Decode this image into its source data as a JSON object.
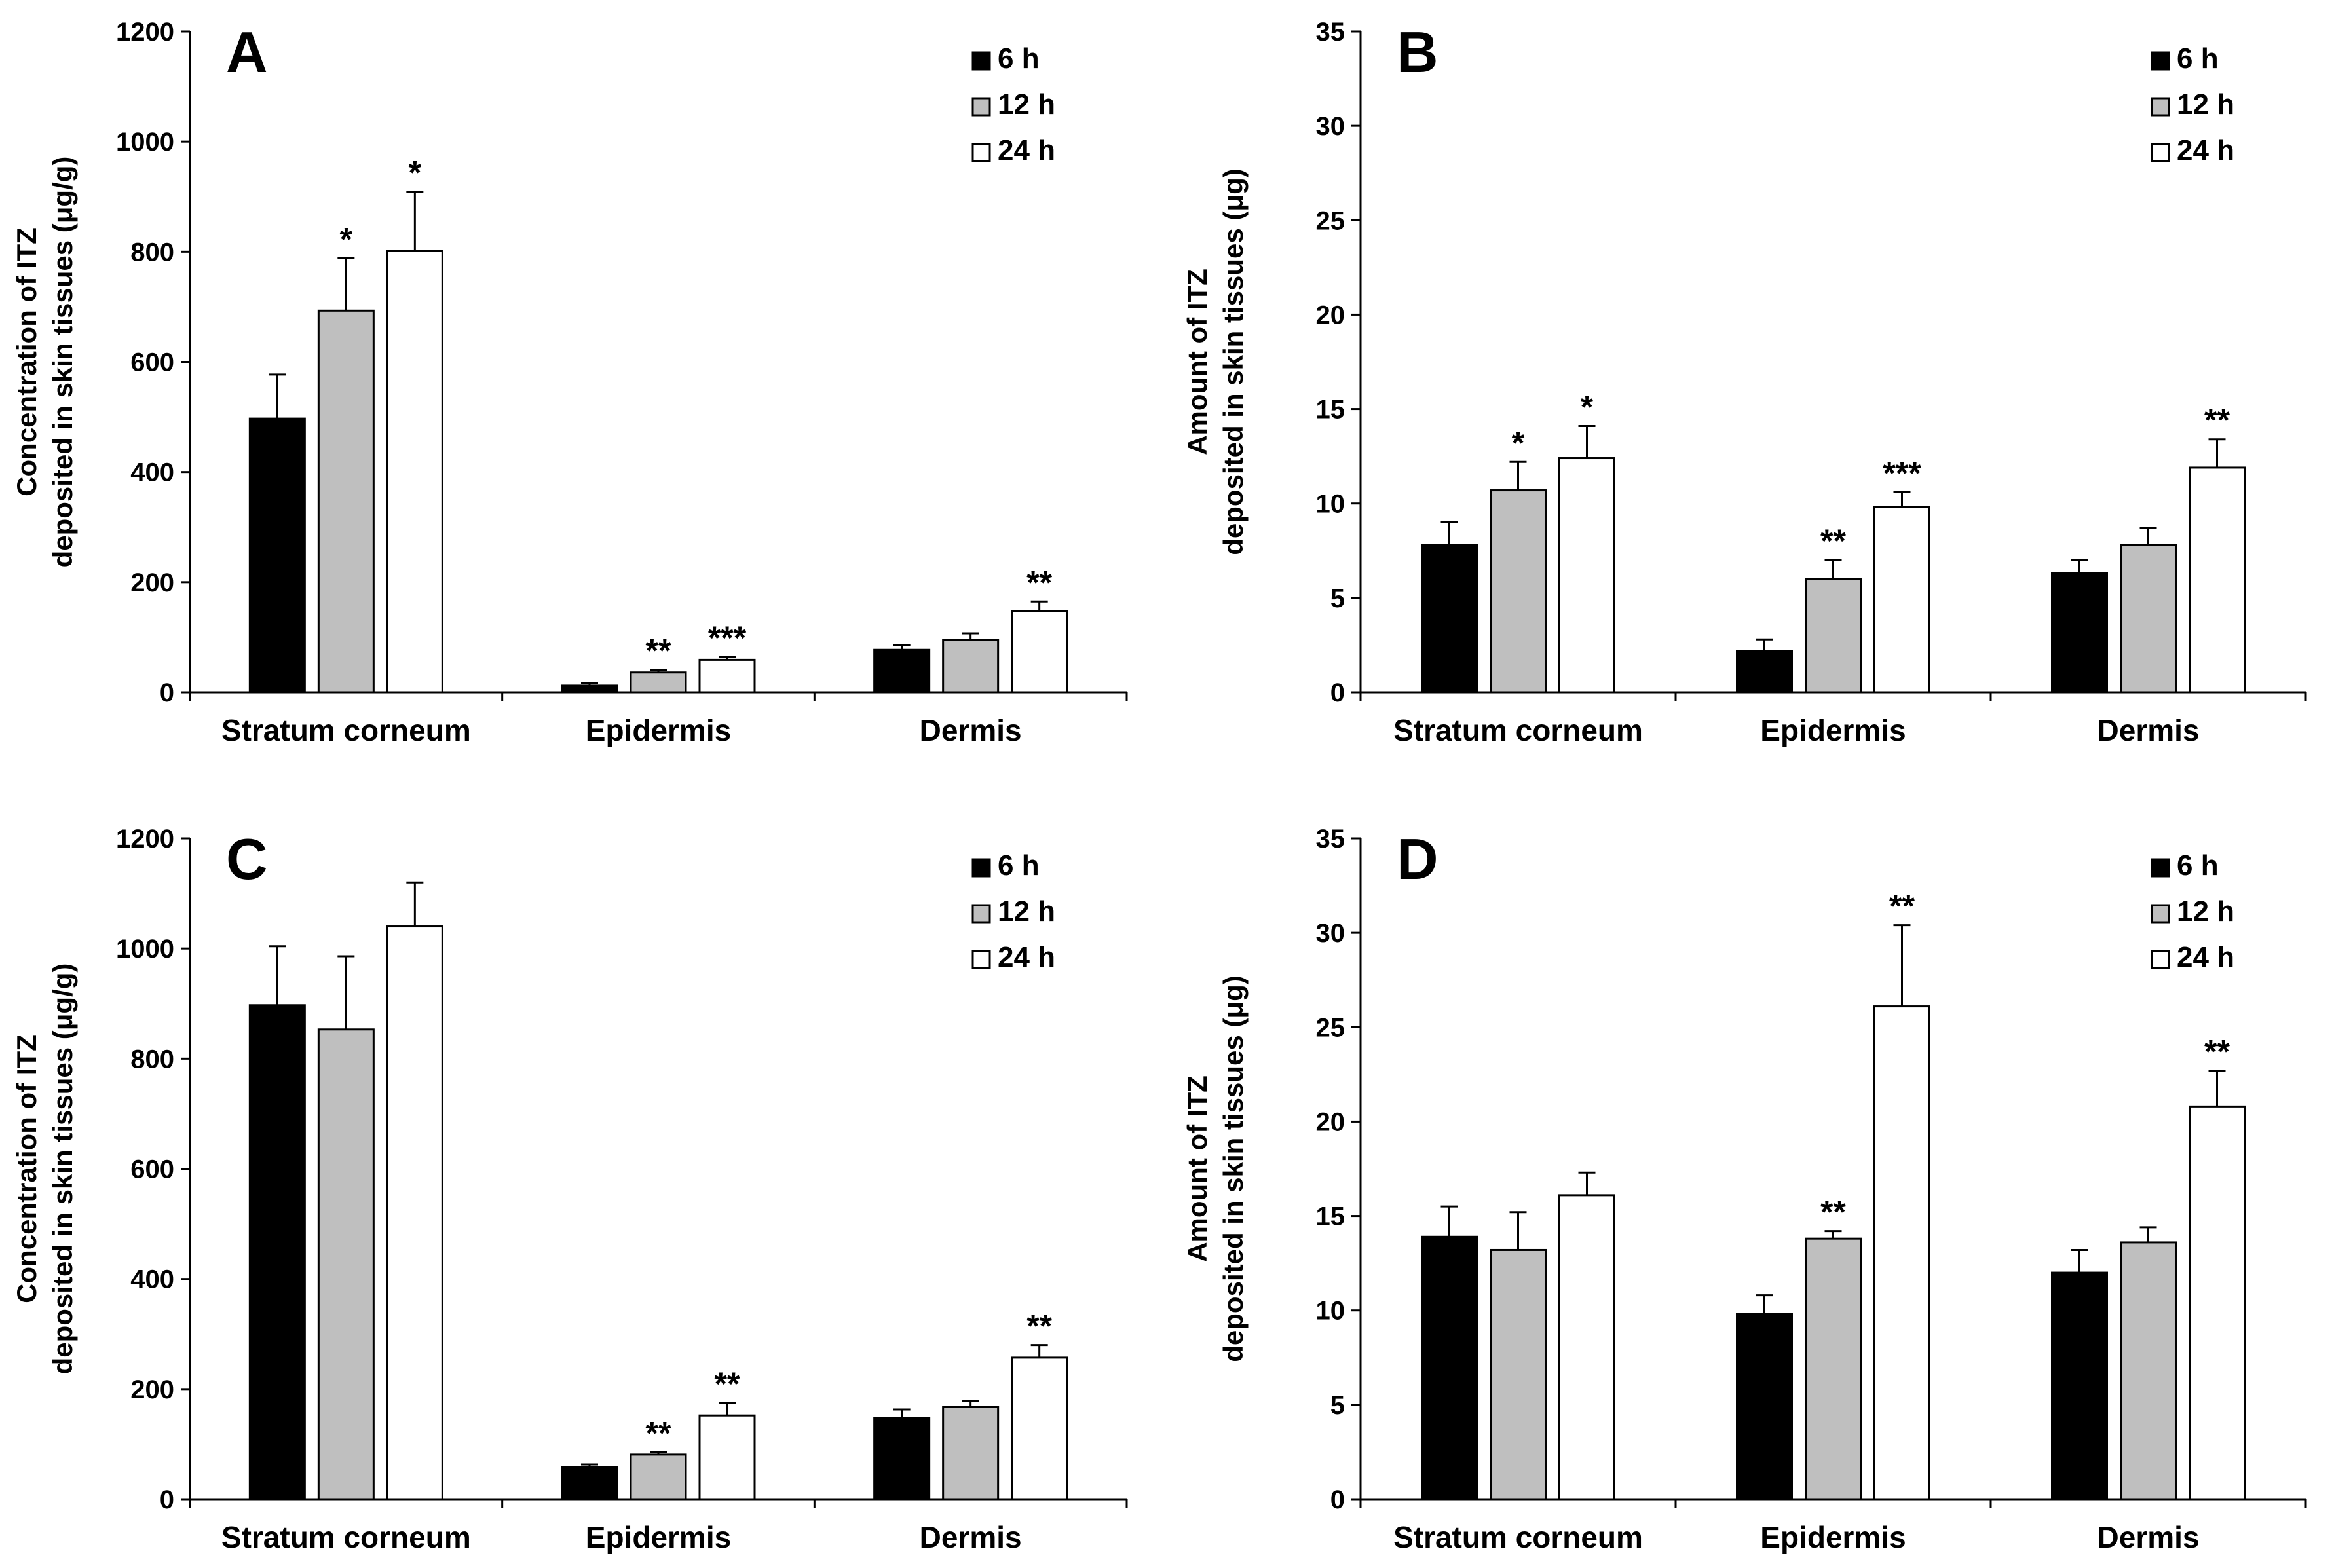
{
  "chart_data": [
    {
      "type": "bar",
      "panel": "A",
      "categories": [
        "Stratum corneum",
        "Epidermis",
        "Dermis"
      ],
      "ylabel_lines": [
        "Concentration of ITZ",
        "deposited in skin tissues (μg/g)"
      ],
      "ylim": [
        0,
        1200
      ],
      "yticks": [
        0,
        200,
        400,
        600,
        800,
        1000,
        1200
      ],
      "series": [
        {
          "name": "6 h",
          "color": "#000000",
          "values": [
            497,
            12,
            77
          ],
          "errors": [
            80,
            5,
            8
          ],
          "sig": [
            "",
            "",
            ""
          ]
        },
        {
          "name": "12 h",
          "color": "#bfbfbf",
          "values": [
            693,
            36,
            95
          ],
          "errors": [
            95,
            5,
            12
          ],
          "sig": [
            "*",
            "**",
            ""
          ]
        },
        {
          "name": "24 h",
          "color": "#ffffff",
          "values": [
            802,
            59,
            147
          ],
          "errors": [
            107,
            5,
            18
          ],
          "sig": [
            "*",
            "***",
            "**"
          ]
        }
      ]
    },
    {
      "type": "bar",
      "panel": "B",
      "categories": [
        "Stratum corneum",
        "Epidermis",
        "Dermis"
      ],
      "ylabel_lines": [
        "Amount of ITZ",
        "deposited in skin tissues (μg)"
      ],
      "ylim": [
        0,
        35
      ],
      "yticks": [
        0,
        5,
        10,
        15,
        20,
        25,
        30,
        35
      ],
      "series": [
        {
          "name": "6 h",
          "color": "#000000",
          "values": [
            7.8,
            2.2,
            6.3
          ],
          "errors": [
            1.2,
            0.6,
            0.7
          ],
          "sig": [
            "",
            "",
            ""
          ]
        },
        {
          "name": "12 h",
          "color": "#bfbfbf",
          "values": [
            10.7,
            6.0,
            7.8
          ],
          "errors": [
            1.5,
            1.0,
            0.9
          ],
          "sig": [
            "*",
            "**",
            ""
          ]
        },
        {
          "name": "24 h",
          "color": "#ffffff",
          "values": [
            12.4,
            9.8,
            11.9
          ],
          "errors": [
            1.7,
            0.8,
            1.5
          ],
          "sig": [
            "*",
            "***",
            "**"
          ]
        }
      ]
    },
    {
      "type": "bar",
      "panel": "C",
      "categories": [
        "Stratum corneum",
        "Epidermis",
        "Dermis"
      ],
      "ylabel_lines": [
        "Concentration of ITZ",
        "deposited in skin tissues (μg/g)"
      ],
      "ylim": [
        0,
        1200
      ],
      "yticks": [
        0,
        200,
        400,
        600,
        800,
        1000,
        1200
      ],
      "series": [
        {
          "name": "6 h",
          "color": "#000000",
          "values": [
            897,
            58,
            148
          ],
          "errors": [
            107,
            5,
            15
          ],
          "sig": [
            "",
            "",
            ""
          ]
        },
        {
          "name": "12 h",
          "color": "#bfbfbf",
          "values": [
            853,
            81,
            168
          ],
          "errors": [
            133,
            4,
            10
          ],
          "sig": [
            "",
            "**",
            ""
          ]
        },
        {
          "name": "24 h",
          "color": "#ffffff",
          "values": [
            1040,
            152,
            257
          ],
          "errors": [
            80,
            23,
            23
          ],
          "sig": [
            "",
            "**",
            "**"
          ]
        }
      ]
    },
    {
      "type": "bar",
      "panel": "D",
      "categories": [
        "Stratum corneum",
        "Epidermis",
        "Dermis"
      ],
      "ylabel_lines": [
        "Amount of ITZ",
        "deposited in skin tissues (μg)"
      ],
      "ylim": [
        0,
        35
      ],
      "yticks": [
        0,
        5,
        10,
        15,
        20,
        25,
        30,
        35
      ],
      "series": [
        {
          "name": "6 h",
          "color": "#000000",
          "values": [
            13.9,
            9.8,
            12.0
          ],
          "errors": [
            1.6,
            1.0,
            1.2
          ],
          "sig": [
            "",
            "",
            ""
          ]
        },
        {
          "name": "12 h",
          "color": "#bfbfbf",
          "values": [
            13.2,
            13.8,
            13.6
          ],
          "errors": [
            2.0,
            0.4,
            0.8
          ],
          "sig": [
            "",
            "**",
            ""
          ]
        },
        {
          "name": "24 h",
          "color": "#ffffff",
          "values": [
            16.1,
            26.1,
            20.8
          ],
          "errors": [
            1.2,
            4.3,
            1.9
          ],
          "sig": [
            "",
            "**",
            "**"
          ]
        }
      ]
    }
  ]
}
